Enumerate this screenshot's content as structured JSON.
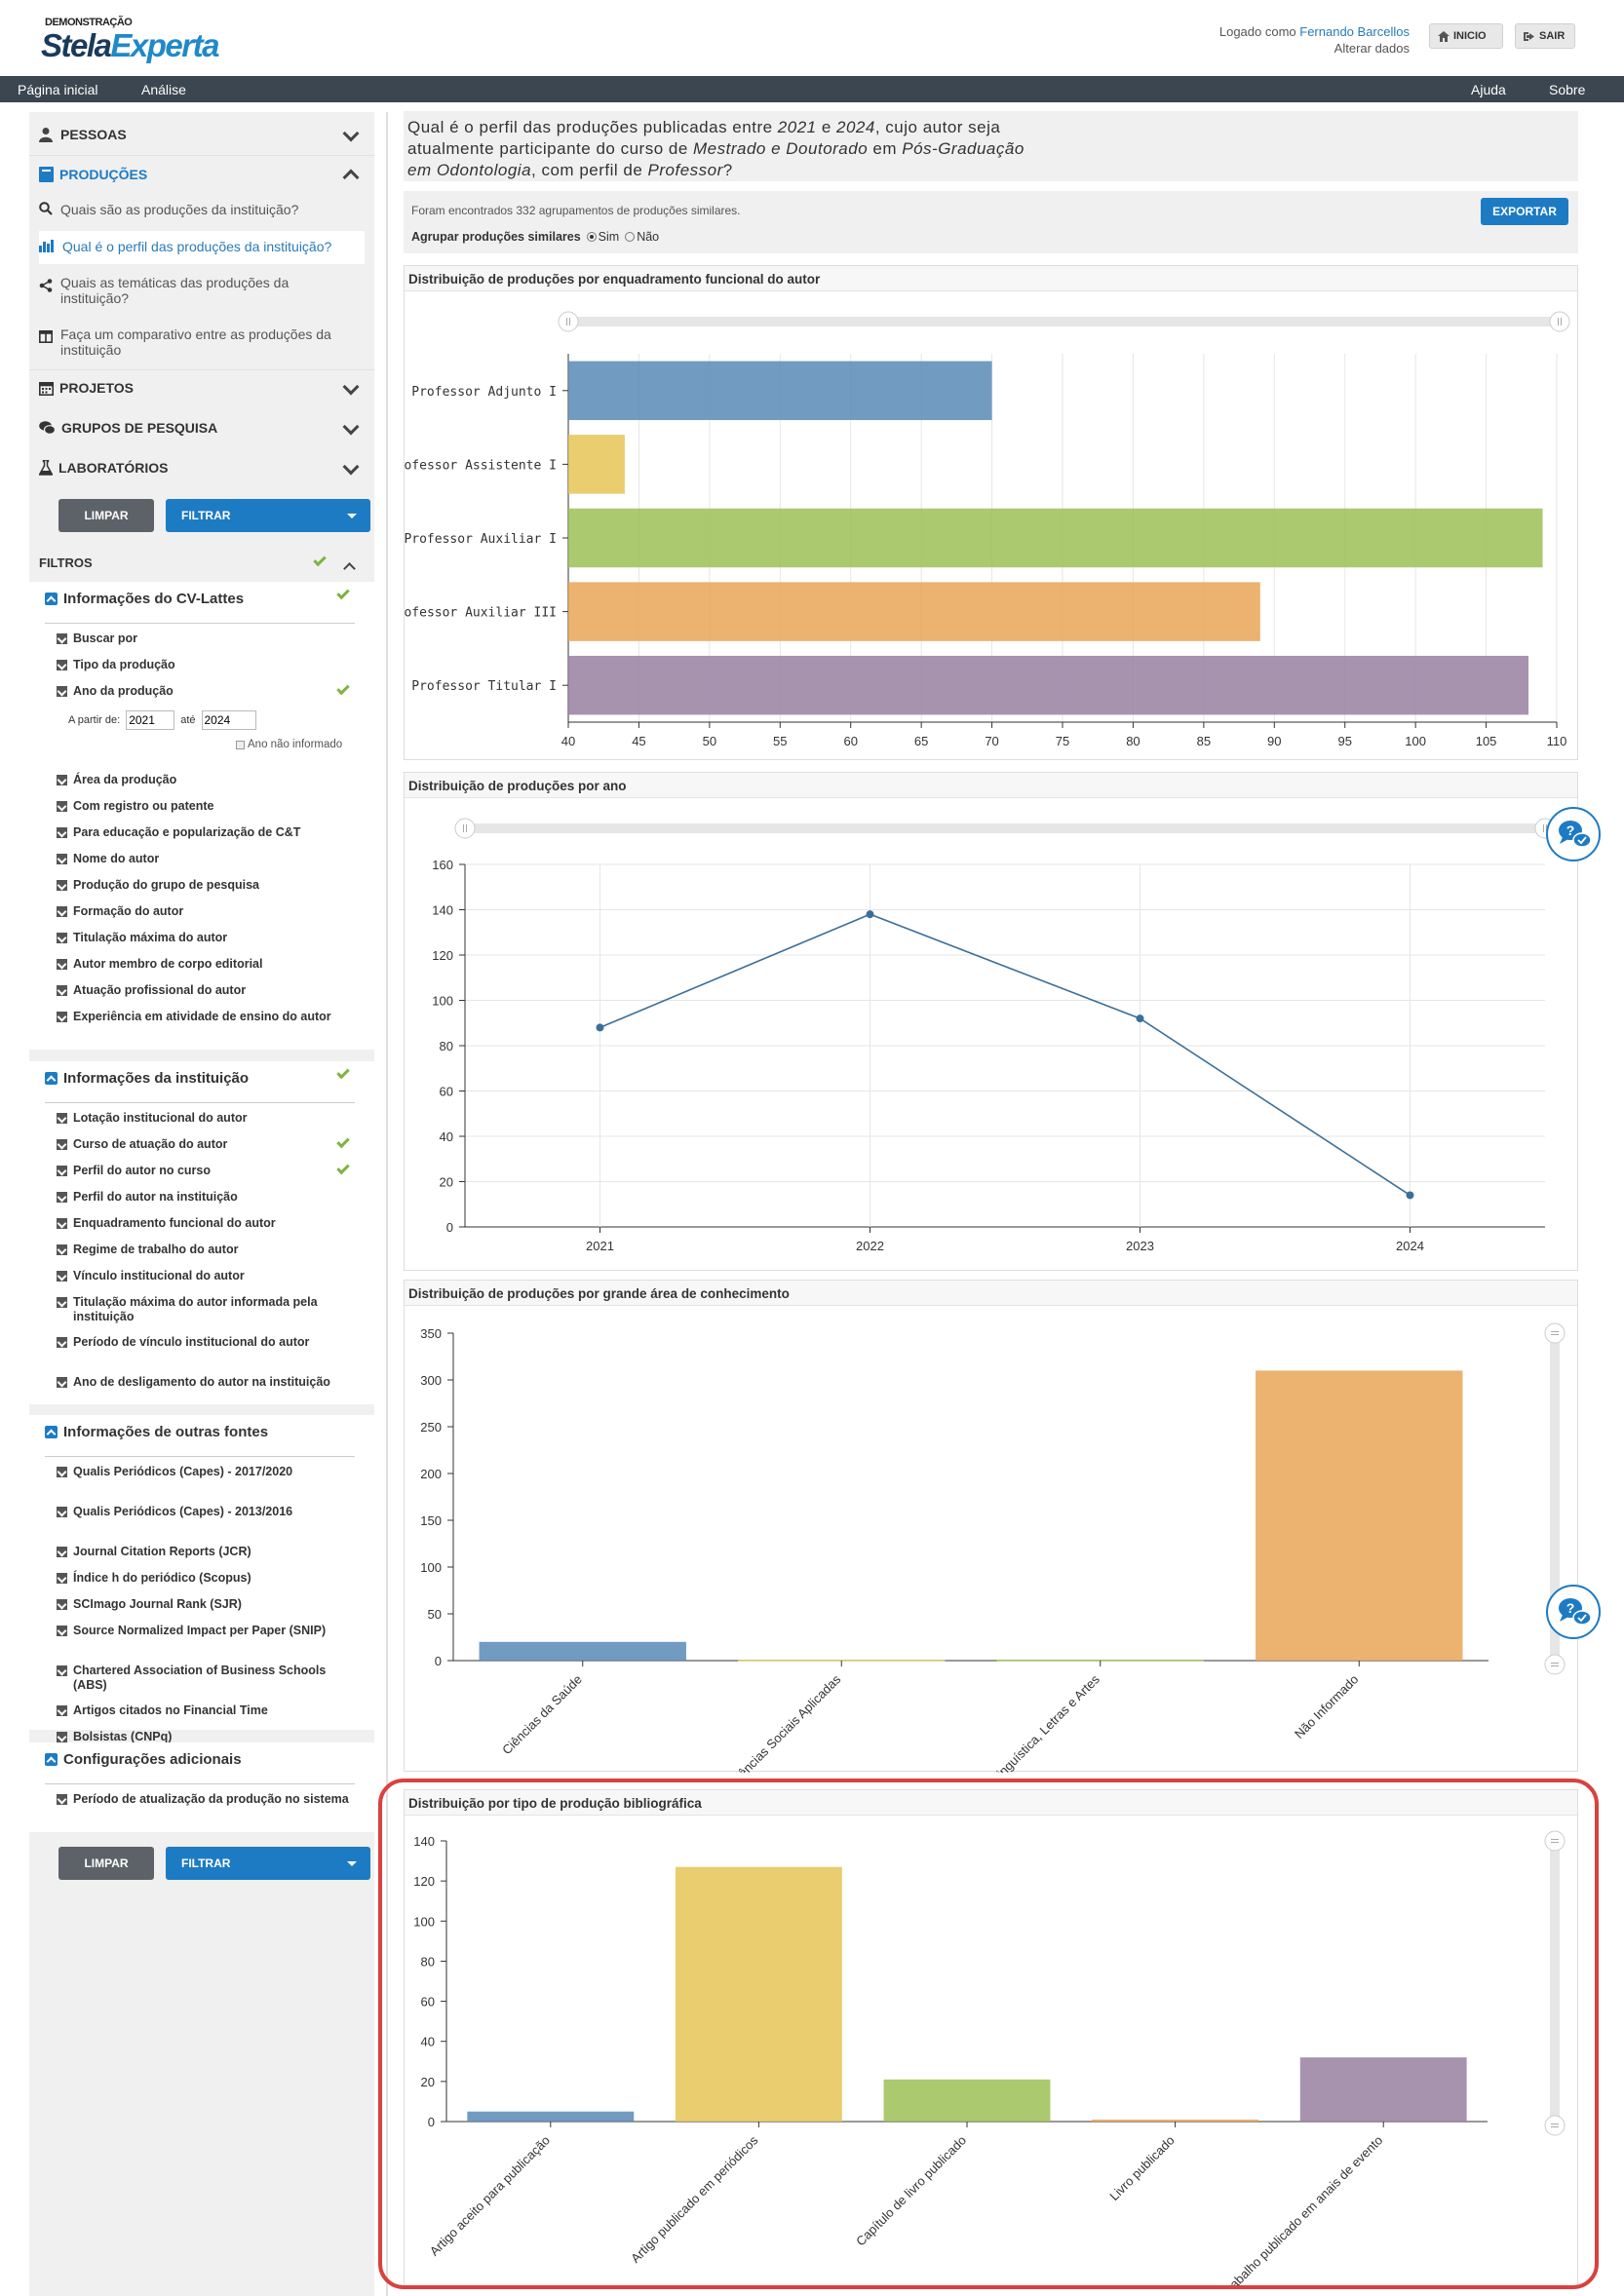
{
  "header": {
    "brand_small": "DEMONSTRAÇÃO",
    "brand_part1": "Stela",
    "brand_part2": "Experta",
    "logged_as": "Logado como",
    "user_name": "Fernando Barcellos",
    "alter_data": "Alterar dados",
    "btn_inicio": "INICIO",
    "btn_sair": "SAIR"
  },
  "navbar": {
    "home": "Página inicial",
    "analise": "Análise",
    "ajuda": "Ajuda",
    "sobre": "Sobre"
  },
  "sidebar": {
    "pessoas": "PESSOAS",
    "producoes": "PRODUÇÕES",
    "prod_items": [
      "Quais são as produções da instituição?",
      "Qual é o perfil das produções da instituição?",
      "Quais as temáticas das produções da instituição?",
      "Faça um comparativo entre as produções da instituição"
    ],
    "projetos": "PROJETOS",
    "grupos": "GRUPOS DE PESQUISA",
    "laboratorios": "LABORATÓRIOS",
    "limpar": "LIMPAR",
    "filtrar": "FILTRAR",
    "filtros": "FILTROS",
    "cv_title": "Informações do CV-Lattes",
    "cv_items": [
      "Buscar por",
      "Tipo da produção",
      "Ano da produção"
    ],
    "a_partir": "A partir de:",
    "year_from": "2021",
    "ate": "até",
    "year_to": "2024",
    "ano_nao": "Ano não informado",
    "cv_items2": [
      "Área da produção",
      "Com registro ou patente",
      "Para educação e popularização de C&T",
      "Nome do autor",
      "Produção do grupo de pesquisa",
      "Formação do autor",
      "Titulação máxima do autor",
      "Autor membro de corpo editorial",
      "Atuação profissional do autor",
      "Experiência em atividade de ensino do autor"
    ],
    "inst_title": "Informações da instituição",
    "inst_items": [
      "Lotação institucional do autor",
      "Curso de atuação do autor",
      "Perfil do autor no curso",
      "Perfil do autor na instituição",
      "Enquadramento funcional do autor",
      "Regime de trabalho do autor",
      "Vínculo institucional do autor",
      "Titulação máxima do autor informada pela instituição",
      "Período de vínculo institucional do autor",
      "Ano de desligamento do autor na instituição"
    ],
    "outras_title": "Informações de outras fontes",
    "outras_items": [
      "Qualis Periódicos (Capes) - 2017/2020",
      "Qualis Periódicos (Capes) - 2013/2016",
      "Journal Citation Reports (JCR)",
      "Índice h do periódico (Scopus)",
      "SCImago Journal Rank (SJR)",
      "Source Normalized Impact per Paper (SNIP)",
      "Chartered Association of Business Schools (ABS)",
      "Artigos citados no Financial Time",
      "Bolsistas (CNPq)"
    ],
    "config_title": "Configurações adicionais",
    "config_items": [
      "Período de atualização da produção no sistema"
    ]
  },
  "main": {
    "question_parts": [
      "Qual é o perfil das produções publicadas entre ",
      "2021",
      " e ",
      "2024",
      ", cujo autor seja atualmente participante do curso de ",
      "Mestrado e Doutorado",
      " em ",
      "Pós-Graduação em Odontologia",
      ", com perfil de ",
      "Professor",
      "?"
    ],
    "found_text": "Foram encontrados 332 agrupamentos de produções similares.",
    "group_label": "Agrupar produções similares",
    "radio_sim": "Sim",
    "radio_nao": "Não",
    "export": "EXPORTAR"
  },
  "colors": {
    "blue": "#5f8db8",
    "yellow": "#e6c65a",
    "green": "#9fc15a",
    "orange": "#e9a75c",
    "purple": "#9c84a4",
    "line": "#3a6f9a",
    "accent": "#1d7bc4"
  },
  "chart_data": [
    {
      "type": "bar",
      "orientation": "horizontal",
      "title": "Distribuição de produções por enquadramento funcional do autor",
      "categories": [
        "Professor Adjunto I",
        "Professor Assistente I",
        "Professor Auxiliar I",
        "Professor Auxiliar III",
        "Professor Titular I"
      ],
      "values": [
        70,
        44,
        109,
        89,
        108
      ],
      "xlim": [
        40,
        110
      ],
      "xticks": [
        40,
        45,
        50,
        55,
        60,
        65,
        70,
        75,
        80,
        85,
        90,
        95,
        100,
        105,
        110
      ]
    },
    {
      "type": "line",
      "title": "Distribuição de produções por ano",
      "x": [
        "2021",
        "2022",
        "2023",
        "2024"
      ],
      "values": [
        88,
        138,
        92,
        14
      ],
      "ylim": [
        0,
        160
      ],
      "yticks": [
        0,
        20,
        40,
        60,
        80,
        100,
        120,
        140,
        160
      ]
    },
    {
      "type": "bar",
      "title": "Distribuição de produções por grande área de conhecimento",
      "categories": [
        "Ciências da Saúde",
        "Ciências Sociais Aplicadas",
        "Linguística, Letras e Artes",
        "Não Informado"
      ],
      "values": [
        20,
        1,
        1,
        310
      ],
      "ylim": [
        0,
        350
      ],
      "yticks": [
        0,
        50,
        100,
        150,
        200,
        250,
        300,
        350
      ]
    },
    {
      "type": "bar",
      "title": "Distribuição por tipo de produção bibliográfica",
      "categories": [
        "Artigo aceito para publicação",
        "Artigo publicado em periódicos",
        "Capítulo de livro publicado",
        "Livro publicado",
        "Trabalho publicado em anais de evento"
      ],
      "values": [
        5,
        127,
        21,
        1,
        32
      ],
      "ylim": [
        0,
        140
      ],
      "yticks": [
        0,
        20,
        40,
        60,
        80,
        100,
        120,
        140
      ]
    }
  ]
}
